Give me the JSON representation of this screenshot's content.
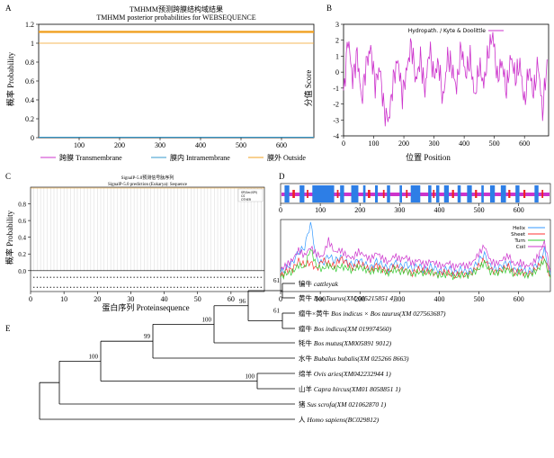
{
  "panels": {
    "A": {
      "letter": "A",
      "title1": "TMHMM预测跨膜结构域结果",
      "title2": "TMHMM posterior probabilities for WEBSEQUENCE",
      "ylabel": "概率 Probability",
      "legend": [
        {
          "label": "跨膜 Transmembrane",
          "color": "#cc33cc"
        },
        {
          "label": "膜内 Intramembrane",
          "color": "#3399cc"
        },
        {
          "label": "膜外 Outside",
          "color": "#f0a020"
        }
      ],
      "chart_data": {
        "type": "line",
        "xlim": [
          0,
          680
        ],
        "ylim": [
          0,
          1.2
        ],
        "xticks": [
          100,
          200,
          300,
          400,
          500,
          600
        ],
        "yticks": [
          0,
          0.2,
          0.4,
          0.6,
          0.8,
          1,
          1.2
        ],
        "series": [
          {
            "name": "膜外 Outside",
            "values": [
              1,
              1
            ]
          },
          {
            "name": "膜内 Intramembrane",
            "values": [
              0,
              0
            ]
          }
        ],
        "reference_line": 1.12
      }
    },
    "B": {
      "letter": "B",
      "xlabel": "位置 Position",
      "ylabel": "分值 Score",
      "legend": "Hydropath. / Kyte & Doolittle",
      "color": "#cc33cc",
      "chart_data": {
        "type": "line",
        "xlim": [
          0,
          680
        ],
        "ylim": [
          -4,
          3
        ],
        "xticks": [
          0,
          100,
          200,
          300,
          400,
          500,
          600
        ],
        "yticks": [
          -4,
          -3,
          -2,
          -1,
          0,
          1,
          2,
          3
        ],
        "series": [
          {
            "name": "Hydropath. / Kyte & Doolittle",
            "x": [
              0,
              15,
              30,
              45,
              60,
              75,
              90,
              105,
              120,
              135,
              150,
              165,
              180,
              195,
              210,
              225,
              240,
              255,
              270,
              285,
              300,
              315,
              330,
              345,
              360,
              375,
              390,
              405,
              420,
              435,
              450,
              465,
              480,
              495,
              510,
              525,
              540,
              555,
              570,
              585,
              600,
              615,
              630,
              645,
              660,
              675
            ],
            "values": [
              -1.5,
              2.2,
              -0.5,
              1.2,
              -1.8,
              0.5,
              1.5,
              -0.8,
              0.3,
              -2.5,
              -3.0,
              -0.5,
              0.8,
              -1.5,
              0.2,
              1.8,
              -0.6,
              0.9,
              -1.2,
              1.5,
              -0.3,
              0.6,
              -1.8,
              1.0,
              0.2,
              -1.0,
              1.6,
              -0.2,
              0.9,
              -1.6,
              0.4,
              -0.8,
              1.2,
              2.4,
              -0.5,
              0.7,
              -1.2,
              1.0,
              -0.4,
              0.5,
              -2.0,
              0.3,
              -1.4,
              0.6,
              -2.6,
              0.8
            ]
          }
        ]
      }
    },
    "C": {
      "letter": "C",
      "title1": "SignalP-5.0预测信号肽序列",
      "title2": "SignalP-5.0 prediction (Eukarya): Sequence",
      "ylabel": "概率 Probability",
      "xlabel": "蛋白序列 Proteinsequence",
      "legend": [
        "SP(Sec/SPI)",
        "CS",
        "OTHER"
      ],
      "chart_data": {
        "type": "line",
        "xlim": [
          0,
          70
        ],
        "ylim": [
          -0.25,
          1.0
        ],
        "xticks": [
          0,
          10,
          20,
          30,
          40,
          50,
          60
        ],
        "yticks": [
          0.0,
          0.2,
          0.4,
          0.6,
          0.8
        ],
        "series": [
          {
            "name": "OTHER",
            "values": [
              1,
              1
            ]
          },
          {
            "name": "SP(Sec/SPI)",
            "values": [
              0,
              0
            ]
          }
        ]
      }
    },
    "D": {
      "letter": "D",
      "legend": [
        {
          "label": "Helix",
          "color": "#3399ff"
        },
        {
          "label": "Sheet",
          "color": "#ff3333"
        },
        {
          "label": "Turn",
          "color": "#33cc33"
        },
        {
          "label": "Coil",
          "color": "#cc33cc"
        }
      ],
      "chart_data": {
        "type": "line",
        "xlim": [
          0,
          680
        ],
        "xticks": [
          0,
          100,
          200,
          300,
          400,
          500,
          600
        ],
        "series": [
          {
            "name": "Helix",
            "values": [
              0.25,
              0.32,
              0.4,
              0.55,
              0.62,
              0.98,
              0.45,
              0.38,
              0.5,
              0.42,
              0.48,
              0.4,
              0.36,
              0.44,
              0.38,
              0.32,
              0.42,
              0.36,
              0.3,
              0.4,
              0.34,
              0.38,
              0.3,
              0.36,
              0.28,
              0.34,
              0.3,
              0.26,
              0.32,
              0.24,
              0.3,
              0.26,
              0.3,
              0.42,
              0.52,
              0.34,
              0.3,
              0.36,
              0.4,
              0.28,
              0.32,
              0.26,
              0.3,
              0.4,
              0.58,
              0.22
            ]
          },
          {
            "name": "Sheet",
            "values": [
              0.2,
              0.28,
              0.3,
              0.42,
              0.36,
              0.4,
              0.3,
              0.44,
              0.38,
              0.34,
              0.46,
              0.4,
              0.32,
              0.38,
              0.34,
              0.28,
              0.36,
              0.3,
              0.26,
              0.34,
              0.3,
              0.28,
              0.24,
              0.3,
              0.26,
              0.28,
              0.22,
              0.26,
              0.24,
              0.2,
              0.24,
              0.22,
              0.26,
              0.34,
              0.44,
              0.3,
              0.26,
              0.3,
              0.34,
              0.24,
              0.28,
              0.22,
              0.26,
              0.34,
              0.48,
              0.18
            ]
          },
          {
            "name": "Turn",
            "values": [
              0.18,
              0.24,
              0.26,
              0.36,
              0.32,
              0.6,
              0.34,
              0.3,
              0.36,
              0.3,
              0.34,
              0.32,
              0.28,
              0.34,
              0.3,
              0.26,
              0.3,
              0.28,
              0.24,
              0.3,
              0.26,
              0.28,
              0.22,
              0.26,
              0.24,
              0.26,
              0.22,
              0.2,
              0.24,
              0.18,
              0.22,
              0.2,
              0.24,
              0.3,
              0.4,
              0.26,
              0.24,
              0.28,
              0.3,
              0.22,
              0.26,
              0.2,
              0.24,
              0.3,
              0.44,
              0.16
            ]
          },
          {
            "name": "Coil",
            "values": [
              0.3,
              0.36,
              0.44,
              0.58,
              0.5,
              0.62,
              0.52,
              0.48,
              0.72,
              0.55,
              0.58,
              0.5,
              0.46,
              0.56,
              0.5,
              0.44,
              0.54,
              0.46,
              0.4,
              0.5,
              0.44,
              0.48,
              0.38,
              0.44,
              0.36,
              0.42,
              0.38,
              0.34,
              0.4,
              0.32,
              0.38,
              0.34,
              0.4,
              0.52,
              0.64,
              0.42,
              0.38,
              0.44,
              0.5,
              0.36,
              0.4,
              0.34,
              0.38,
              0.5,
              0.7,
              0.28
            ]
          }
        ]
      }
    },
    "E": {
      "letter": "E",
      "taxa": [
        {
          "cn": "犏牛",
          "sci": "cattleyak",
          "acc": ""
        },
        {
          "cn": "黄牛",
          "sci": "Bos Taurus",
          "acc": "(XM 005215851 4)"
        },
        {
          "cn": "瘤牛×黄牛",
          "sci": "Bos indicus × Bos taurus",
          "acc": "(XM 027563687)"
        },
        {
          "cn": "瘤牛",
          "sci": "Bos indicus",
          "acc": "(XM 019974560)"
        },
        {
          "cn": "牦牛",
          "sci": "Bos mutus",
          "acc": "(XM005891 9012)"
        },
        {
          "cn": "水牛",
          "sci": "Bubalus bubalis",
          "acc": "(XM 025266 8663)"
        },
        {
          "cn": "绵羊",
          "sci": "Ovis aries",
          "acc": "(XM042232944 1)"
        },
        {
          "cn": "山羊",
          "sci": "Capra hircus",
          "acc": "(XM01 8058851 1)"
        },
        {
          "cn": "猪",
          "sci": "Sus scrofa",
          "acc": "(XM 021062870 1)"
        },
        {
          "cn": "人",
          "sci": "Homo sapiens",
          "acc": "(BC029812)"
        }
      ],
      "bootstraps": [
        "61",
        "96",
        "61",
        "100",
        "100",
        "99",
        "100",
        "100"
      ]
    }
  }
}
